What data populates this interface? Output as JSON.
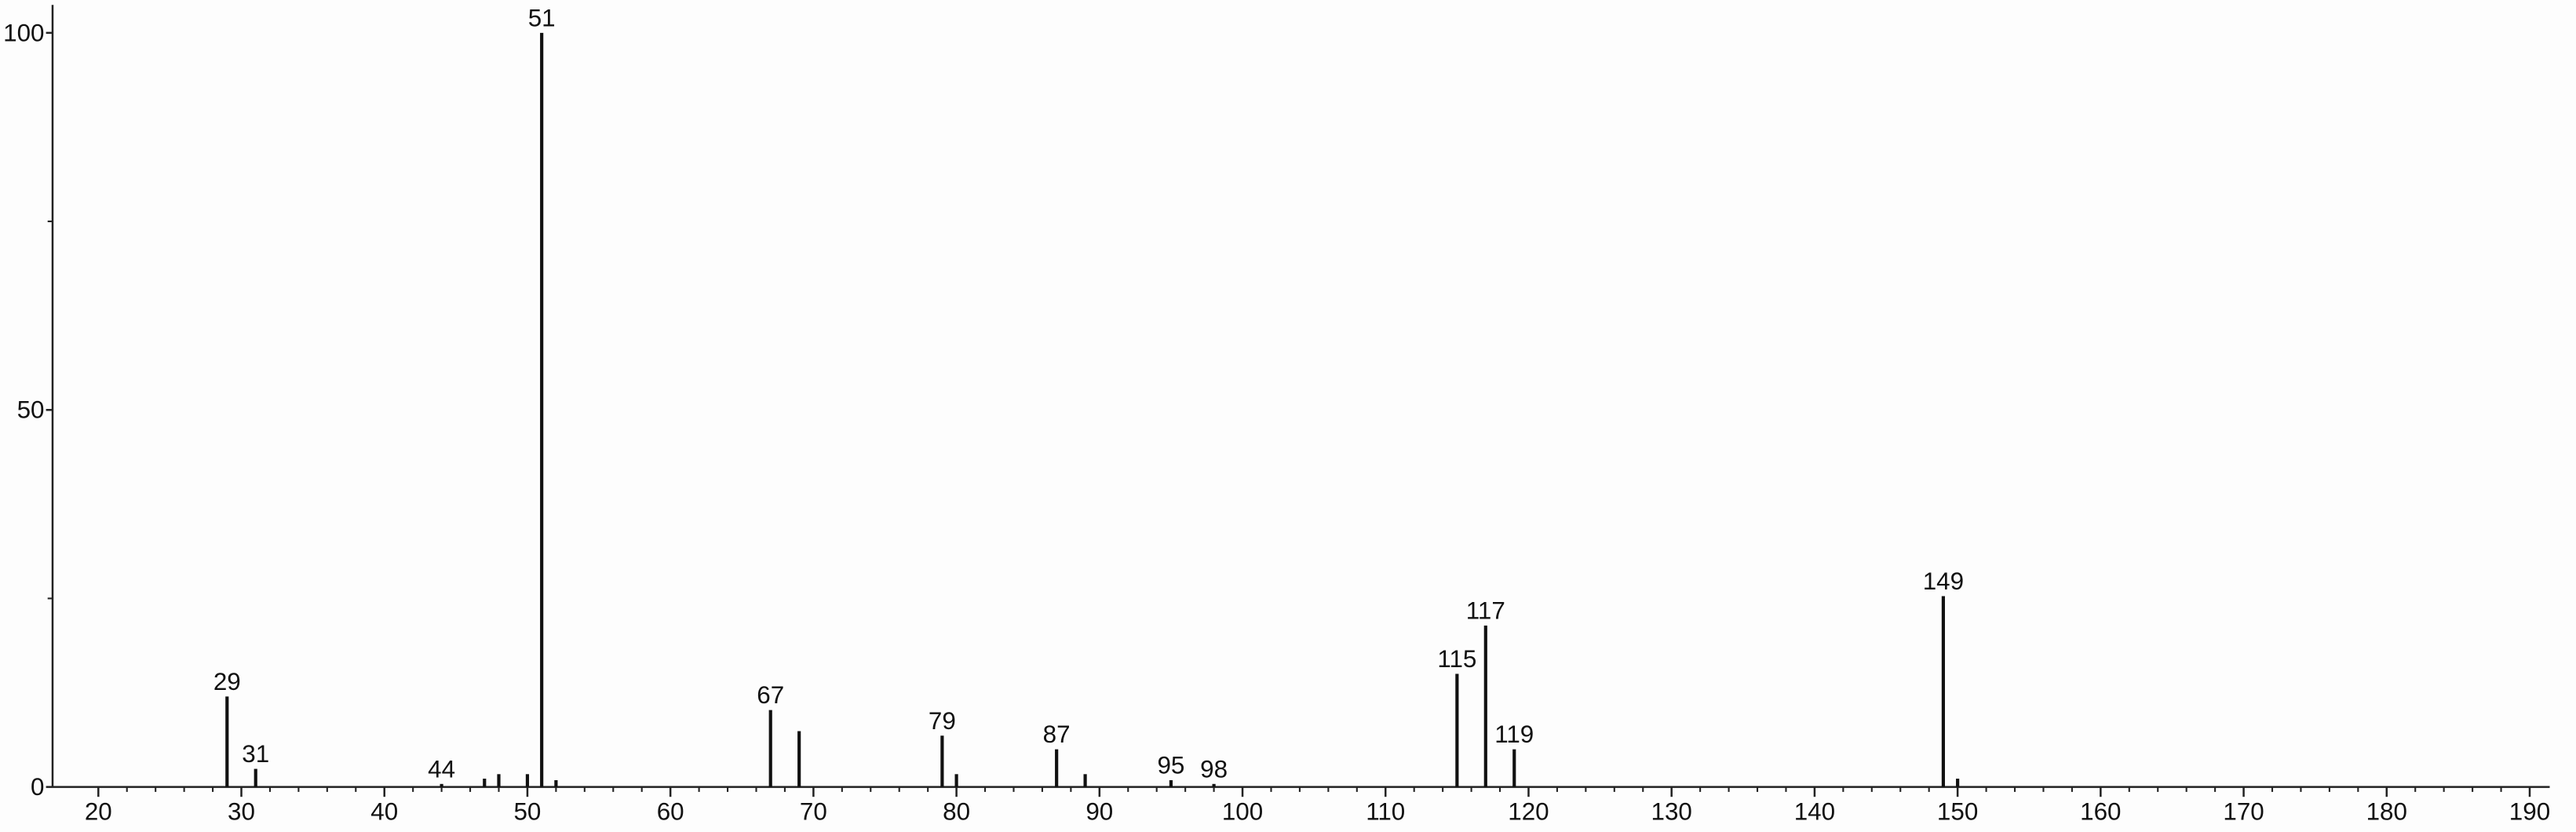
{
  "chart_data": {
    "type": "stick",
    "x": [
      29,
      31,
      44,
      47,
      48,
      50,
      51,
      52,
      67,
      69,
      79,
      80,
      87,
      89,
      95,
      98,
      115,
      117,
      119,
      149,
      150
    ],
    "values": [
      12.0,
      2.4,
      0.4,
      1.1,
      1.7,
      1.7,
      100,
      0.9,
      10.2,
      7.4,
      6.8,
      1.7,
      5.0,
      1.7,
      0.9,
      0.4,
      15.0,
      21.4,
      5.0,
      25.3,
      1.1
    ],
    "peak_labels": [
      29,
      31,
      44,
      null,
      null,
      null,
      51,
      null,
      67,
      null,
      79,
      null,
      87,
      null,
      95,
      98,
      115,
      117,
      119,
      149,
      null
    ],
    "color": "#111111",
    "xlim": [
      16.8,
      191.4
    ],
    "xticks": [
      20,
      30,
      40,
      50,
      60,
      70,
      80,
      90,
      100,
      110,
      120,
      130,
      140,
      150,
      160,
      170,
      180,
      190
    ],
    "xminorticks": [
      22,
      24,
      26,
      28,
      32,
      34,
      36,
      38,
      42,
      44,
      46,
      48,
      52,
      54,
      56,
      58,
      62,
      64,
      66,
      68,
      72,
      74,
      76,
      78,
      82,
      84,
      86,
      88,
      92,
      94,
      96,
      98,
      102,
      104,
      106,
      108,
      112,
      114,
      116,
      118,
      122,
      124,
      126,
      128,
      132,
      134,
      136,
      138,
      142,
      144,
      146,
      148,
      152,
      154,
      156,
      158,
      162,
      164,
      166,
      168,
      172,
      174,
      176,
      178,
      182,
      184,
      186,
      188
    ],
    "ylim": [
      0,
      103.7
    ],
    "yticks": [
      0,
      50,
      100
    ],
    "yminorticks": [
      25,
      75
    ]
  }
}
